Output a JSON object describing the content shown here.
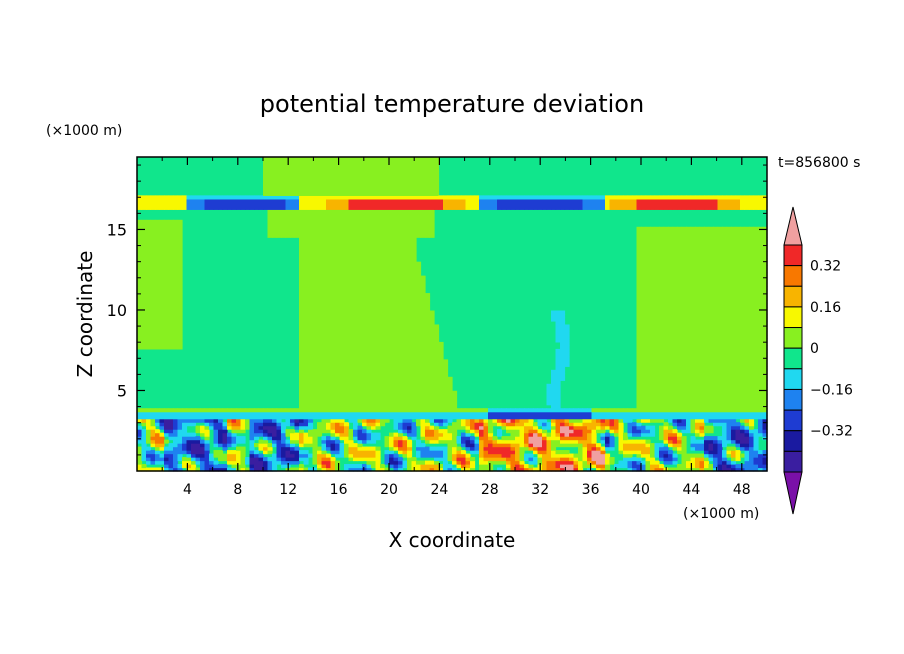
{
  "chart_data": {
    "type": "heatmap",
    "title": "potential temperature deviation",
    "xlabel": "X coordinate",
    "ylabel": "Z coordinate",
    "x_unit": "(×1000 m)",
    "y_unit": "(×1000 m)",
    "time_label": "t=856800 s",
    "xlim": [
      0,
      50
    ],
    "ylim": [
      0,
      19.5
    ],
    "x_ticks": [
      4,
      8,
      12,
      16,
      20,
      24,
      28,
      32,
      36,
      40,
      44,
      48
    ],
    "y_ticks": [
      5,
      10,
      15
    ],
    "colorbar": {
      "labels": [
        "0.32",
        "0.16",
        "0",
        "-0.16",
        "-0.32"
      ],
      "label_values": [
        0.32,
        0.16,
        0,
        -0.16,
        -0.32
      ],
      "levels": [
        -0.48,
        -0.4,
        -0.32,
        -0.24,
        -0.16,
        -0.08,
        0,
        0.08,
        0.16,
        0.24,
        0.32,
        0.4,
        0.48
      ],
      "colors": [
        "#7a10a8",
        "#3a1ea0",
        "#1a1aa0",
        "#1e3cd2",
        "#1e82f0",
        "#20d8f0",
        "#10e68c",
        "#88f020",
        "#f8f800",
        "#f8b400",
        "#f87800",
        "#f02828",
        "#f0a0a0"
      ]
    },
    "features": [
      {
        "kind": "background",
        "value": -0.04
      },
      {
        "kind": "warm_column",
        "x_range": [
          10,
          23
        ],
        "z_range": [
          3.5,
          19.5
        ],
        "value": 0.02
      },
      {
        "kind": "warm_column",
        "x_range": [
          39,
          50
        ],
        "z_range": [
          3.5,
          15
        ],
        "value": 0.02
      },
      {
        "kind": "tropopause_layer",
        "z": 16.6,
        "warm_x": [
          [
            14,
            26
          ],
          [
            37,
            48
          ]
        ],
        "cold_x": [
          [
            4,
            12
          ],
          [
            27,
            37
          ]
        ]
      },
      {
        "kind": "boundary_layer",
        "z_range": [
          0,
          3.6
        ],
        "mixed": [
          -0.4,
          0.45
        ]
      }
    ]
  }
}
